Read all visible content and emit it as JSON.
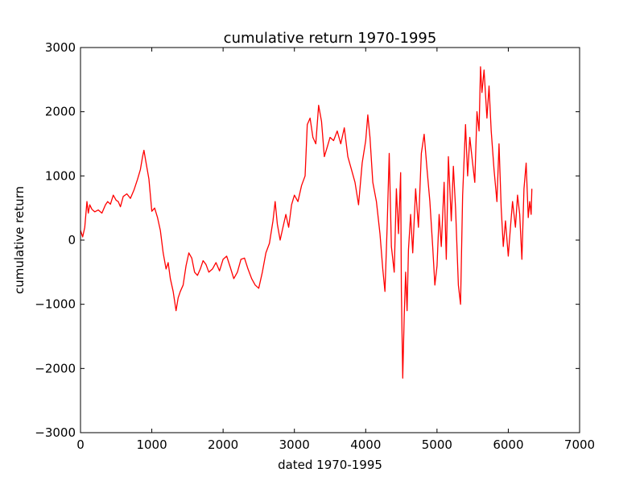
{
  "chart_data": {
    "type": "line",
    "title": "cumulative return 1970-1995",
    "xlabel": "dated 1970-1995",
    "ylabel": "cumulative return",
    "xlim": [
      0,
      7000
    ],
    "ylim": [
      -3000,
      3000
    ],
    "xticks": [
      0,
      1000,
      2000,
      3000,
      4000,
      5000,
      6000,
      7000
    ],
    "xtick_labels": [
      "0",
      "1000",
      "2000",
      "3000",
      "4000",
      "5000",
      "6000",
      "7000"
    ],
    "yticks": [
      -3000,
      -2000,
      -1000,
      0,
      1000,
      2000,
      3000
    ],
    "ytick_labels": [
      "−3000",
      "−2000",
      "−1000",
      "0",
      "1000",
      "2000",
      "3000"
    ],
    "grid": false,
    "series": [
      {
        "color": "#ff0000",
        "x": [
          0,
          30,
          60,
          90,
          110,
          130,
          160,
          200,
          250,
          300,
          350,
          380,
          420,
          460,
          500,
          530,
          560,
          600,
          650,
          700,
          750,
          800,
          840,
          870,
          890,
          920,
          960,
          1000,
          1040,
          1080,
          1120,
          1160,
          1200,
          1230,
          1260,
          1300,
          1340,
          1370,
          1400,
          1440,
          1480,
          1520,
          1560,
          1600,
          1640,
          1680,
          1720,
          1760,
          1800,
          1850,
          1900,
          1950,
          2000,
          2050,
          2100,
          2150,
          2200,
          2250,
          2300,
          2350,
          2400,
          2450,
          2500,
          2550,
          2600,
          2650,
          2700,
          2730,
          2760,
          2800,
          2840,
          2880,
          2920,
          2960,
          3000,
          3050,
          3100,
          3150,
          3180,
          3220,
          3260,
          3300,
          3340,
          3380,
          3420,
          3460,
          3500,
          3550,
          3600,
          3650,
          3700,
          3750,
          3800,
          3850,
          3900,
          3950,
          4000,
          4030,
          4060,
          4100,
          4150,
          4200,
          4240,
          4270,
          4300,
          4330,
          4360,
          4400,
          4430,
          4460,
          4490,
          4500,
          4520,
          4540,
          4560,
          4580,
          4600,
          4630,
          4660,
          4700,
          4740,
          4780,
          4820,
          4860,
          4900,
          4940,
          4970,
          5000,
          5030,
          5060,
          5100,
          5130,
          5160,
          5200,
          5230,
          5260,
          5300,
          5330,
          5360,
          5400,
          5430,
          5460,
          5500,
          5530,
          5560,
          5590,
          5610,
          5630,
          5660,
          5700,
          5730,
          5760,
          5800,
          5840,
          5870,
          5900,
          5930,
          5960,
          6000,
          6030,
          6060,
          6100,
          6130,
          6160,
          6190,
          6220,
          6250,
          6280,
          6300,
          6320,
          6330
        ],
        "y": [
          150,
          50,
          200,
          600,
          420,
          550,
          480,
          440,
          470,
          420,
          550,
          600,
          560,
          700,
          620,
          600,
          520,
          680,
          720,
          650,
          780,
          950,
          1100,
          1300,
          1400,
          1200,
          950,
          450,
          500,
          350,
          150,
          -200,
          -450,
          -350,
          -600,
          -800,
          -1100,
          -900,
          -800,
          -700,
          -400,
          -200,
          -280,
          -500,
          -550,
          -450,
          -320,
          -380,
          -500,
          -450,
          -350,
          -480,
          -300,
          -250,
          -420,
          -600,
          -500,
          -300,
          -280,
          -450,
          -600,
          -700,
          -750,
          -500,
          -200,
          -50,
          300,
          600,
          250,
          0,
          200,
          400,
          200,
          550,
          700,
          600,
          850,
          1000,
          1800,
          1900,
          1600,
          1500,
          2100,
          1850,
          1300,
          1450,
          1600,
          1550,
          1700,
          1500,
          1750,
          1300,
          1100,
          900,
          550,
          1200,
          1550,
          1950,
          1600,
          900,
          600,
          100,
          -450,
          -800,
          200,
          1350,
          -100,
          -500,
          800,
          100,
          1050,
          -800,
          -2150,
          -1200,
          -500,
          -1100,
          -150,
          400,
          -200,
          800,
          200,
          1350,
          1650,
          1100,
          600,
          -100,
          -700,
          -400,
          400,
          -100,
          900,
          -300,
          1300,
          300,
          1150,
          500,
          -700,
          -1000,
          700,
          1800,
          1000,
          1600,
          1200,
          900,
          2000,
          1700,
          2700,
          2300,
          2650,
          1900,
          2400,
          1700,
          1100,
          600,
          1500,
          500,
          -100,
          300,
          -250,
          200,
          600,
          200,
          700,
          400,
          -300,
          800,
          1200,
          350,
          600,
          400,
          800
        ]
      }
    ]
  }
}
